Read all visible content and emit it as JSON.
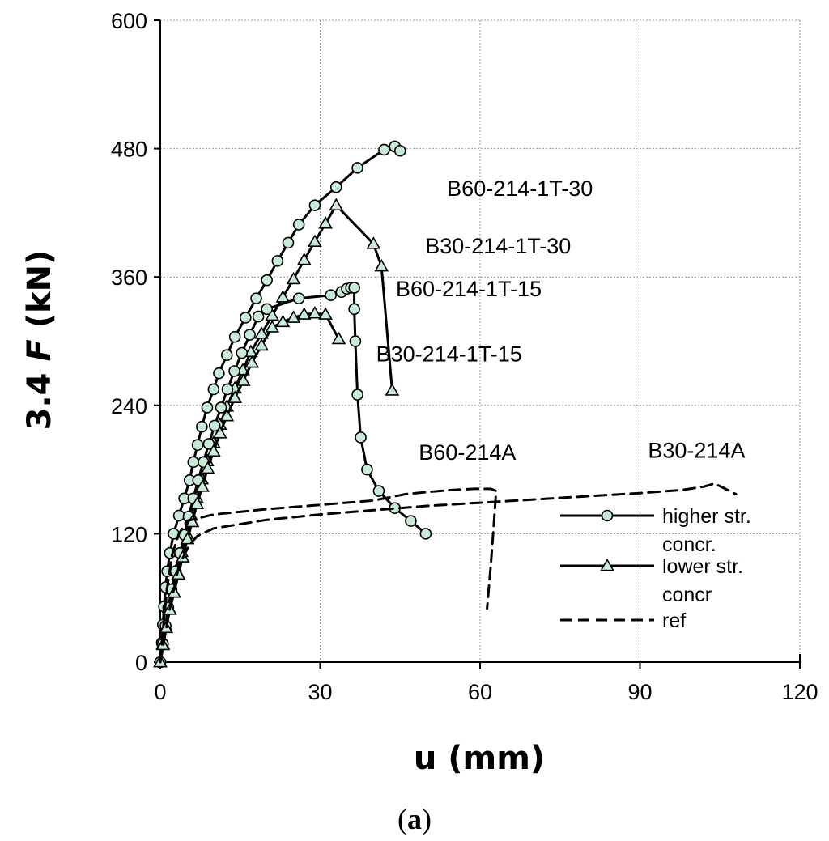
{
  "chart_data": {
    "type": "line",
    "title": "",
    "xlabel": "u (mm)",
    "ylabel_prefix": "3.4 ",
    "ylabel_italic": "F",
    "ylabel_suffix": " (kN)",
    "panel_open": "(",
    "panel_letter": "a",
    "panel_close": ")",
    "xlim": [
      0,
      120
    ],
    "ylim": [
      0,
      600
    ],
    "xticks": [
      0,
      30,
      60,
      90,
      120
    ],
    "yticks": [
      0,
      120,
      240,
      360,
      480,
      600
    ],
    "grid": true,
    "legend_position": "bottom-right",
    "marker_fill": "#c9ead6",
    "line_color": "#000000",
    "legend": [
      {
        "style": "circle",
        "lines": [
          "higher str.",
          "concr."
        ]
      },
      {
        "style": "triangle",
        "lines": [
          "lower str.",
          "concr"
        ]
      },
      {
        "style": "dashed",
        "lines": [
          "ref"
        ]
      }
    ],
    "series": [
      {
        "name": "B60-214-1T-30",
        "marker": "circle",
        "dash": false,
        "label_at": [
          53.8,
          436
        ],
        "points": [
          [
            0,
            0
          ],
          [
            0.3,
            18
          ],
          [
            0.5,
            35
          ],
          [
            0.7,
            52
          ],
          [
            1,
            70
          ],
          [
            1.3,
            85
          ],
          [
            1.8,
            102
          ],
          [
            2.5,
            120
          ],
          [
            3.5,
            137
          ],
          [
            4.5,
            153
          ],
          [
            5.5,
            170
          ],
          [
            6.2,
            187
          ],
          [
            7,
            203
          ],
          [
            7.8,
            220
          ],
          [
            8.8,
            238
          ],
          [
            10,
            255
          ],
          [
            11,
            270
          ],
          [
            12.5,
            287
          ],
          [
            14,
            304
          ],
          [
            16,
            322
          ],
          [
            18,
            340
          ],
          [
            20,
            357
          ],
          [
            22,
            375
          ],
          [
            24,
            392
          ],
          [
            26,
            409
          ],
          [
            29,
            427
          ],
          [
            33,
            444
          ],
          [
            37,
            462
          ],
          [
            42,
            479
          ],
          [
            44,
            482
          ],
          [
            45,
            478
          ]
        ]
      },
      {
        "name": "B30-214-1T-30",
        "marker": "triangle",
        "dash": false,
        "label_at": [
          49.7,
          382
        ],
        "points": [
          [
            0,
            0
          ],
          [
            0.5,
            17
          ],
          [
            1,
            34
          ],
          [
            1.6,
            51
          ],
          [
            2.2,
            68
          ],
          [
            3,
            86
          ],
          [
            4,
            103
          ],
          [
            5,
            120
          ],
          [
            5.8,
            137
          ],
          [
            6.8,
            154
          ],
          [
            7.8,
            171
          ],
          [
            8.8,
            188
          ],
          [
            10,
            205
          ],
          [
            11.2,
            222
          ],
          [
            12.5,
            239
          ],
          [
            14,
            256
          ],
          [
            15.5,
            273
          ],
          [
            17,
            290
          ],
          [
            19,
            307
          ],
          [
            21,
            324
          ],
          [
            23,
            341
          ],
          [
            25,
            358
          ],
          [
            27,
            376
          ],
          [
            29,
            393
          ],
          [
            31,
            410
          ],
          [
            33,
            427
          ],
          [
            40,
            391
          ],
          [
            41.5,
            370
          ],
          [
            43.5,
            254
          ]
        ]
      },
      {
        "name": "B60-214-1T-15",
        "marker": "circle",
        "dash": false,
        "label_at": [
          44.2,
          342
        ],
        "points": [
          [
            0,
            0
          ],
          [
            0.5,
            17
          ],
          [
            1,
            34
          ],
          [
            1.5,
            51
          ],
          [
            2.1,
            68
          ],
          [
            2.9,
            85
          ],
          [
            3.7,
            102
          ],
          [
            4.5,
            119
          ],
          [
            5.3,
            136
          ],
          [
            6.2,
            153
          ],
          [
            7.1,
            170
          ],
          [
            8.1,
            187
          ],
          [
            9.1,
            204
          ],
          [
            10.2,
            221
          ],
          [
            11.4,
            238
          ],
          [
            12.6,
            255
          ],
          [
            13.9,
            272
          ],
          [
            15.3,
            289
          ],
          [
            16.8,
            306
          ],
          [
            18.4,
            323
          ],
          [
            20,
            330
          ],
          [
            26,
            340
          ],
          [
            32,
            343
          ],
          [
            34,
            346
          ],
          [
            35,
            349
          ],
          [
            35.8,
            350
          ],
          [
            36.4,
            350
          ],
          [
            36.4,
            330
          ],
          [
            36.6,
            300
          ],
          [
            37,
            250
          ],
          [
            37.6,
            210
          ],
          [
            38.8,
            180
          ],
          [
            41,
            160
          ],
          [
            44,
            144
          ],
          [
            47,
            132
          ],
          [
            49.8,
            120
          ]
        ]
      },
      {
        "name": "B30-214-1T-15",
        "marker": "triangle",
        "dash": false,
        "label_at": [
          40.5,
          281
        ],
        "points": [
          [
            0,
            0
          ],
          [
            0.5,
            16
          ],
          [
            1.1,
            32
          ],
          [
            1.8,
            49
          ],
          [
            2.6,
            65
          ],
          [
            3.4,
            82
          ],
          [
            4.2,
            98
          ],
          [
            5.1,
            115
          ],
          [
            6,
            131
          ],
          [
            6.9,
            148
          ],
          [
            7.9,
            164
          ],
          [
            8.9,
            181
          ],
          [
            10,
            197
          ],
          [
            11.2,
            214
          ],
          [
            12.5,
            230
          ],
          [
            14,
            247
          ],
          [
            15.6,
            263
          ],
          [
            17.2,
            280
          ],
          [
            19,
            296
          ],
          [
            21,
            313
          ],
          [
            23,
            318
          ],
          [
            25,
            322
          ],
          [
            27,
            325
          ],
          [
            29,
            326
          ],
          [
            31,
            325
          ],
          [
            33.5,
            302
          ]
        ]
      },
      {
        "name": "B60-214A",
        "marker": "none",
        "dash": true,
        "label_at": [
          48.5,
          189
        ],
        "points": [
          [
            0,
            0
          ],
          [
            0.6,
            35
          ],
          [
            1.3,
            70
          ],
          [
            2.2,
            100
          ],
          [
            3.5,
            120
          ],
          [
            5,
            132
          ],
          [
            10,
            138
          ],
          [
            20,
            143
          ],
          [
            30,
            147
          ],
          [
            40,
            151
          ],
          [
            46,
            157
          ],
          [
            50,
            159
          ],
          [
            55,
            161
          ],
          [
            59,
            162
          ],
          [
            62,
            162
          ],
          [
            63,
            160
          ],
          [
            62.6,
            130
          ],
          [
            62,
            90
          ],
          [
            61.3,
            50
          ]
        ]
      },
      {
        "name": "B30-214A",
        "marker": "none",
        "dash": true,
        "label_at": [
          91.5,
          191
        ],
        "points": [
          [
            0,
            0
          ],
          [
            1.8,
            50
          ],
          [
            3.5,
            90
          ],
          [
            5.5,
            110
          ],
          [
            7,
            118
          ],
          [
            10,
            125
          ],
          [
            20,
            133
          ],
          [
            30,
            138
          ],
          [
            40,
            142
          ],
          [
            50,
            146
          ],
          [
            60,
            149
          ],
          [
            70,
            152
          ],
          [
            80,
            155
          ],
          [
            90,
            158
          ],
          [
            98,
            161
          ],
          [
            102,
            164
          ],
          [
            104,
            167
          ],
          [
            106,
            162
          ],
          [
            108,
            157
          ]
        ]
      }
    ]
  }
}
